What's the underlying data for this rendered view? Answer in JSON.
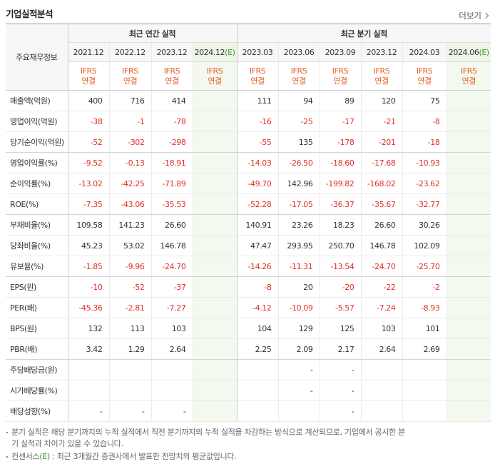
{
  "header": {
    "title": "기업실적분석",
    "more": "더보기"
  },
  "table": {
    "corner": "주요재무정보",
    "groups": [
      {
        "label": "최근 연간 실적",
        "columns": [
          {
            "period": "2021.12",
            "standard": "IFRS",
            "basis": "연결"
          },
          {
            "period": "2022.12",
            "standard": "IFRS",
            "basis": "연결"
          },
          {
            "period": "2023.12",
            "standard": "IFRS",
            "basis": "연결"
          },
          {
            "period": "2024.12",
            "estimate": "(E)",
            "standard": "IFRS",
            "basis": "연결"
          }
        ]
      },
      {
        "label": "최근 분기 실적",
        "columns": [
          {
            "period": "2023.03",
            "standard": "IFRS",
            "basis": "연결"
          },
          {
            "period": "2023.06",
            "standard": "IFRS",
            "basis": "연결"
          },
          {
            "period": "2023.09",
            "standard": "IFRS",
            "basis": "연결"
          },
          {
            "period": "2023.12",
            "standard": "IFRS",
            "basis": "연결"
          },
          {
            "period": "2024.03",
            "standard": "IFRS",
            "basis": "연결"
          },
          {
            "period": "2024.06",
            "estimate": "(E)",
            "standard": "IFRS",
            "basis": "연결"
          }
        ]
      }
    ],
    "rows": [
      {
        "label": "매출액(억원)",
        "values": [
          "400",
          "716",
          "414",
          null,
          "111",
          "94",
          "89",
          "120",
          "75",
          null
        ]
      },
      {
        "label": "영업이익(억원)",
        "values": [
          "-38",
          "-1",
          "-78",
          null,
          "-16",
          "-25",
          "-17",
          "-21",
          "-8",
          null
        ]
      },
      {
        "label": "당기순이익(억원)",
        "values": [
          "-52",
          "-302",
          "-298",
          null,
          "-55",
          "135",
          "-178",
          "-201",
          "-18",
          null
        ]
      },
      {
        "label": "영업이익률(%)",
        "values": [
          "-9.52",
          "-0.13",
          "-18.91",
          null,
          "-14.03",
          "-26.50",
          "-18.60",
          "-17.68",
          "-10.93",
          null
        ]
      },
      {
        "label": "순이익률(%)",
        "values": [
          "-13.02",
          "-42.25",
          "-71.89",
          null,
          "-49.70",
          "142.96",
          "-199.82",
          "-168.02",
          "-23.62",
          null
        ]
      },
      {
        "label": "ROE(%)",
        "values": [
          "-7.35",
          "-43.06",
          "-35.53",
          null,
          "-52.28",
          "-17.05",
          "-36.37",
          "-35.67",
          "-32.77",
          null
        ]
      },
      {
        "label": "부채비율(%)",
        "values": [
          "109.58",
          "141.23",
          "26.60",
          null,
          "140.91",
          "23.26",
          "18.23",
          "26.60",
          "30.26",
          null
        ]
      },
      {
        "label": "당좌비율(%)",
        "values": [
          "45.23",
          "53.02",
          "146.78",
          null,
          "47.47",
          "293.95",
          "250.70",
          "146.78",
          "102.09",
          null
        ]
      },
      {
        "label": "유보율(%)",
        "values": [
          "-1.85",
          "-9.96",
          "-24.70",
          null,
          "-14.26",
          "-11.31",
          "-13.54",
          "-24.70",
          "-25.70",
          null
        ]
      },
      {
        "label": "EPS(원)",
        "values": [
          "-10",
          "-52",
          "-37",
          null,
          "-8",
          "20",
          "-20",
          "-22",
          "-2",
          null
        ]
      },
      {
        "label": "PER(배)",
        "values": [
          "-45.36",
          "-2.81",
          "-7.27",
          null,
          "-4.12",
          "-10.09",
          "-5.57",
          "-7.24",
          "-8.93",
          null
        ]
      },
      {
        "label": "BPS(원)",
        "values": [
          "132",
          "113",
          "103",
          null,
          "104",
          "129",
          "125",
          "103",
          "101",
          null
        ]
      },
      {
        "label": "PBR(배)",
        "values": [
          "3.42",
          "1.29",
          "2.64",
          null,
          "2.25",
          "2.09",
          "2.17",
          "2.64",
          "2.69",
          null
        ]
      },
      {
        "label": "주당배당금(원)",
        "values": [
          null,
          null,
          null,
          null,
          null,
          "-",
          "-",
          null,
          null,
          null
        ]
      },
      {
        "label": "시가배당률(%)",
        "values": [
          null,
          null,
          null,
          null,
          null,
          "-",
          "-",
          null,
          null,
          null
        ]
      },
      {
        "label": "배당성향(%)",
        "values": [
          "-",
          "-",
          "-",
          null,
          null,
          null,
          "-",
          null,
          null,
          null
        ]
      }
    ]
  },
  "notes": [
    {
      "text": "분기 실적은 해당 분기까지의 누적 실적에서 직전 분기까지의 누적 실적을 차감하는 방식으로 계산되므로, 기업에서 공시한 분기 실적과 차이가 있을 수 있습니다."
    },
    {
      "term": "컨센서스",
      "mark": "(E)",
      "text": " : 최근 3개월간 증권사에서 발표한 전망치의 평균값입니다."
    }
  ]
}
